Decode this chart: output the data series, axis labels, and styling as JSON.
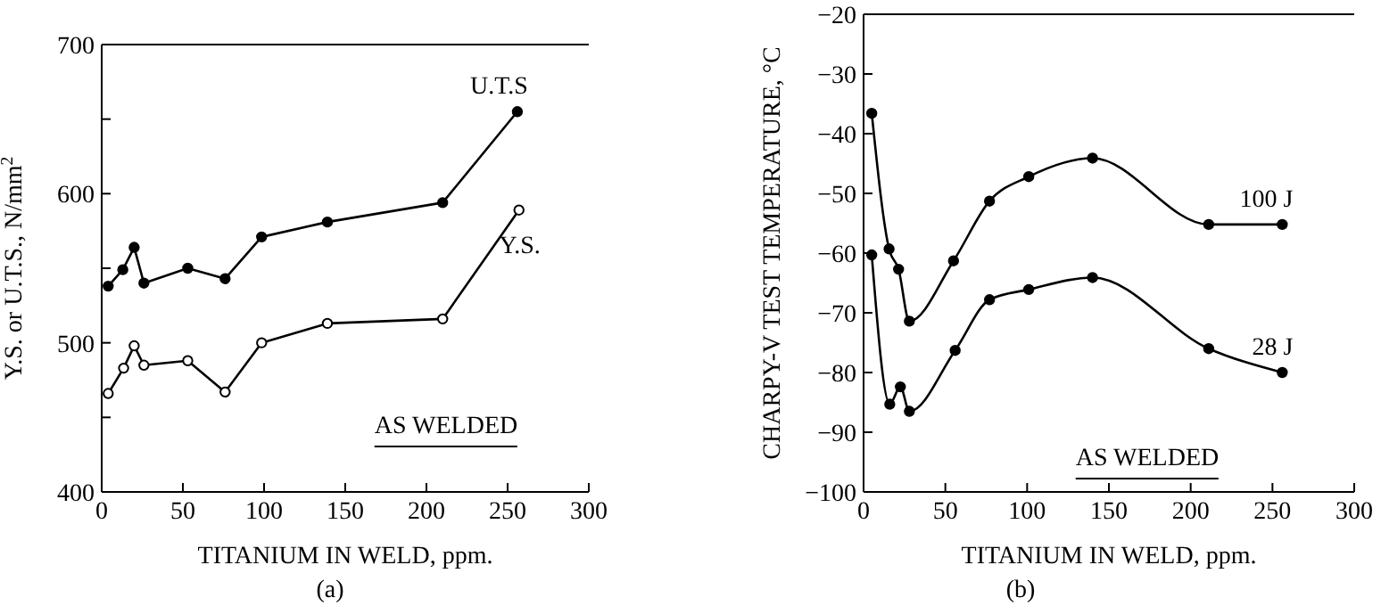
{
  "chart_data": [
    {
      "type": "line",
      "xlabel": "TITANIUM IN WELD, ppm.",
      "ylabel": "Y.S. or U.T.S., N/mm$^{2}$",
      "xlim": [
        0,
        300
      ],
      "xticks": [
        0,
        50,
        100,
        150,
        200,
        250,
        300
      ],
      "ylim": [
        400,
        700
      ],
      "yticks": [
        400,
        {
          "value": 450,
          "label": null
        },
        500,
        {
          "value": 550,
          "label": null
        },
        600,
        {
          "value": 650,
          "label": null
        },
        700
      ],
      "grid": false,
      "legend": false,
      "marker": "circle",
      "line_style": "solid",
      "annotations": [
        "AS WELDED",
        "(a)"
      ],
      "series": [
        {
          "name": "U.T.S",
          "color": "#000000",
          "x": [
            4,
            13,
            20,
            26,
            53,
            76,
            98.5,
            139,
            210,
            256
          ],
          "values": [
            538,
            549,
            564,
            540,
            550,
            543,
            571,
            581,
            594,
            655
          ]
        },
        {
          "name": "Y.S.",
          "color": "#000000",
          "x": [
            4,
            13.5,
            20,
            26,
            53,
            76,
            98.5,
            139,
            210,
            257
          ],
          "values": [
            466,
            483,
            498,
            485,
            488,
            467,
            500,
            513,
            516,
            589
          ]
        }
      ]
    },
    {
      "type": "line",
      "xlabel": "TITANIUM IN WELD, ppm.",
      "ylabel": "CHARPY-V TEST TEMPERATURE, °C",
      "xlim": [
        0,
        300
      ],
      "xticks": [
        0,
        50,
        100,
        150,
        200,
        250,
        300
      ],
      "ylim": [
        -100,
        -20
      ],
      "yticks": [
        -100,
        -90,
        -80,
        -70,
        -60,
        -50,
        -40,
        -30,
        -20
      ],
      "grid": false,
      "legend": false,
      "marker": "circle",
      "line_style": "solid",
      "annotations": [
        "AS WELDED",
        "(b)"
      ],
      "series": [
        {
          "name": "100 J",
          "color": "#000000",
          "x": [
            5,
            15.6,
            21.4,
            28,
            55,
            77,
            101,
            140,
            211,
            256
          ],
          "values": [
            -36.6,
            -59.3,
            -62.7,
            -71.4,
            -61.3,
            -51.3,
            -47.2,
            -44.1,
            -55.2,
            -55.2
          ]
        },
        {
          "name": "28 J",
          "color": "#000000",
          "x": [
            5,
            16,
            22.5,
            28,
            56,
            77,
            101,
            140,
            211,
            256
          ],
          "values": [
            -60.3,
            -85.3,
            -82.4,
            -86.5,
            -76.3,
            -67.8,
            -66.1,
            -64.1,
            -76,
            -80
          ]
        }
      ]
    }
  ]
}
